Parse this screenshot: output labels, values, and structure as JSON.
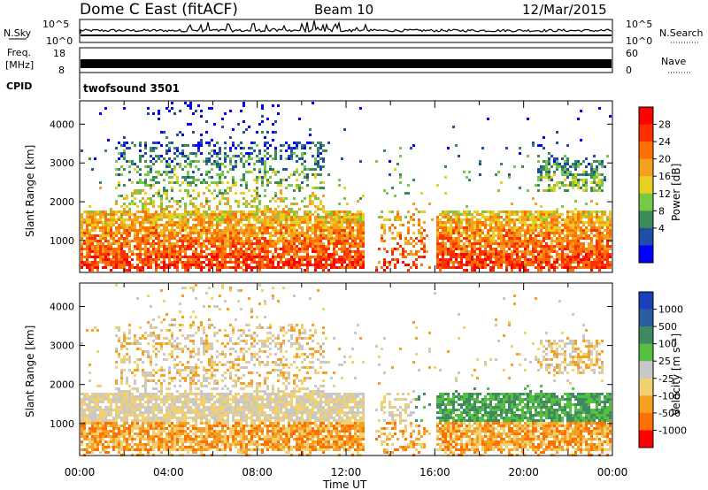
{
  "header": {
    "station": "Dome C East (fitACF)",
    "beam": "Beam 10",
    "date": "12/Mar/2015"
  },
  "top_panels": {
    "nsky": {
      "label": "N.Sky",
      "ticks": [
        "10^5",
        "10^0"
      ],
      "right_label": "N.Search",
      "right_ticks": [
        "10^5",
        "10^0"
      ]
    },
    "freq": {
      "label_line1": "Freq.",
      "label_line2": "[MHz]",
      "ticks": [
        "18",
        "8"
      ],
      "right_label": "Nave",
      "right_ticks": [
        "60",
        "0"
      ]
    },
    "cpid": {
      "label": "CPID",
      "value": "twofsound 3501"
    }
  },
  "chart_data": [
    {
      "type": "heatmap",
      "name": "power",
      "ylabel": "Slant Range [km]",
      "yticks": [
        1000,
        2000,
        3000,
        4000
      ],
      "ylim": [
        180,
        4600
      ],
      "colorbar_label": "Power [dB]",
      "colorbar_ticks": [
        "28",
        "24",
        "20",
        "16",
        "12",
        "8",
        "4"
      ],
      "colors": [
        "#0000ff",
        "#1e4ea8",
        "#3a8a5a",
        "#78c848",
        "#e8d020",
        "#f5a020",
        "#ff7000",
        "#ff3000",
        "#ff0000"
      ]
    },
    {
      "type": "heatmap",
      "name": "velocity",
      "ylabel": "Slant Range [km]",
      "yticks": [
        1000,
        2000,
        3000,
        4000
      ],
      "ylim": [
        180,
        4600
      ],
      "colorbar_label": "Velocity [m s⁻¹]",
      "colorbar_ticks": [
        "1000",
        "500",
        "100",
        "25",
        "-25",
        "-100",
        "-500",
        "-1000"
      ],
      "colors": [
        "#1a40c0",
        "#2a5ea0",
        "#3f8a60",
        "#55c040",
        "#c8c8c8",
        "#f0d070",
        "#f5a020",
        "#ff7000",
        "#ff0000"
      ]
    }
  ],
  "xaxis": {
    "label": "Time UT",
    "ticks": [
      "00:00",
      "04:00",
      "08:00",
      "12:00",
      "16:00",
      "20:00",
      "00:00"
    ]
  }
}
